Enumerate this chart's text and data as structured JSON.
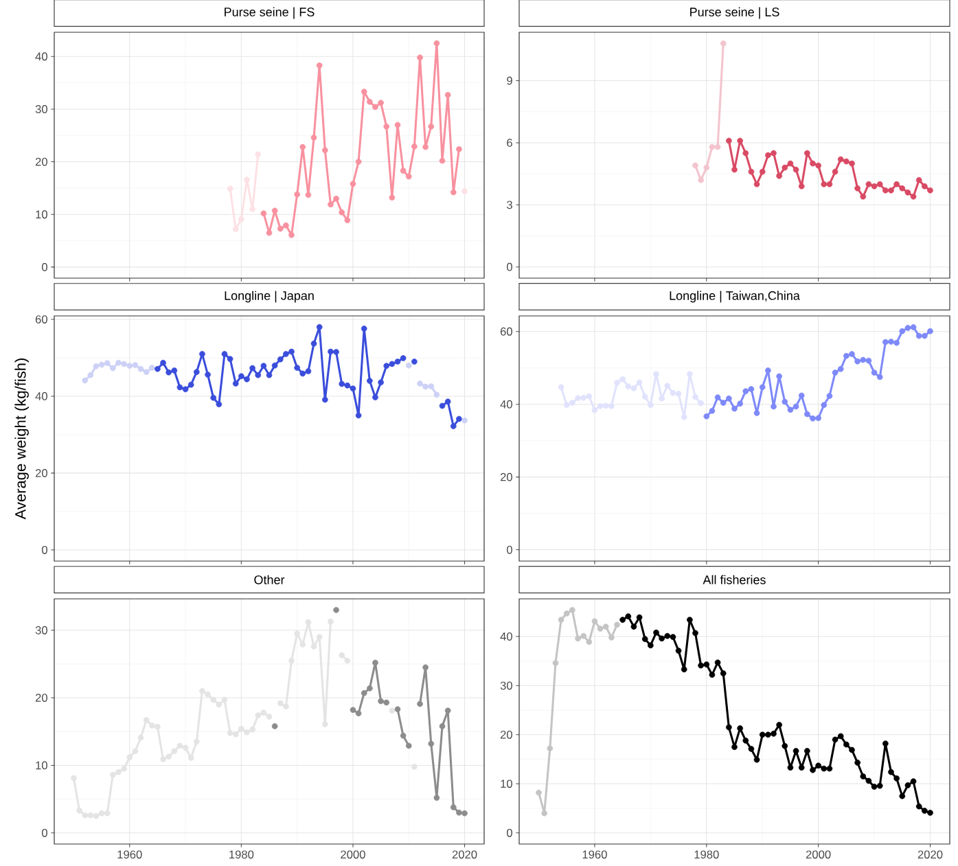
{
  "chart_data": [
    {
      "type": "line",
      "title": "Purse seine | FS",
      "xlim": [
        1946.5,
        2023.5
      ],
      "ylim": [
        -2.1,
        44.6
      ],
      "xticks": [
        1960,
        1980,
        2000,
        2020
      ],
      "yticks": [
        0,
        10,
        20,
        30,
        40
      ],
      "tick_labels": "y",
      "grid": true,
      "marker": "circle",
      "series": [
        {
          "color": "#fce1e5",
          "x": [
            1978,
            1979,
            1980,
            1981,
            1982,
            1983,
            1984,
            1985,
            1986,
            1987,
            1988,
            1989,
            1990,
            1991,
            1992,
            1993,
            1994,
            1995,
            1996,
            1997,
            1998,
            1999,
            2000,
            2001,
            2002,
            2003,
            2004,
            2005,
            2006,
            2007,
            2008,
            2009,
            2010,
            2011,
            2012,
            2013,
            2014,
            2015,
            2016,
            2017,
            2018,
            2019,
            2020
          ],
          "values": [
            14.9,
            7.2,
            9.1,
            16.6,
            11.0,
            21.4,
            null,
            null,
            null,
            null,
            null,
            null,
            null,
            null,
            null,
            null,
            null,
            null,
            null,
            null,
            null,
            null,
            null,
            null,
            null,
            null,
            null,
            null,
            null,
            null,
            null,
            null,
            null,
            null,
            null,
            null,
            null,
            null,
            null,
            null,
            null,
            null,
            14.4
          ]
        },
        {
          "color": "#f8919f",
          "x": [
            1984,
            1985,
            1986,
            1987,
            1988,
            1989,
            1990,
            1991,
            1992,
            1993,
            1994,
            1995,
            1996,
            1997,
            1998,
            1999,
            2000,
            2001,
            2002,
            2003,
            2004,
            2005,
            2006,
            2007,
            2008,
            2009,
            2010,
            2011,
            2012,
            2013,
            2014,
            2015,
            2016,
            2017,
            2018,
            2019
          ],
          "values": [
            10.2,
            6.5,
            10.7,
            7.3,
            7.9,
            6.1,
            13.8,
            22.8,
            13.7,
            24.6,
            38.3,
            22.2,
            11.9,
            13.0,
            10.4,
            8.9,
            15.8,
            20.0,
            33.3,
            31.4,
            30.4,
            31.2,
            26.7,
            13.2,
            27.0,
            18.3,
            17.2,
            22.9,
            39.8,
            22.8,
            26.7,
            42.5,
            20.2,
            32.7,
            14.2,
            22.4
          ]
        }
      ]
    },
    {
      "type": "line",
      "title": "Purse seine | LS",
      "xlim": [
        1946.5,
        2023.5
      ],
      "ylim": [
        -0.54,
        11.34
      ],
      "xticks": [
        1960,
        1980,
        2000,
        2020
      ],
      "yticks": [
        0,
        3,
        6,
        9
      ],
      "tick_labels": "y",
      "grid": true,
      "marker": "circle",
      "series": [
        {
          "color": "#f3c4ce",
          "x": [
            1978,
            1979,
            1980,
            1981,
            1982,
            1983
          ],
          "values": [
            4.9,
            4.2,
            4.8,
            5.8,
            5.8,
            10.8
          ]
        },
        {
          "color": "#d94a64",
          "x": [
            1984,
            1985,
            1986,
            1987,
            1988,
            1989,
            1990,
            1991,
            1992,
            1993,
            1994,
            1995,
            1996,
            1997,
            1998,
            1999,
            2000,
            2001,
            2002,
            2003,
            2004,
            2005,
            2006,
            2007,
            2008,
            2009,
            2010,
            2011,
            2012,
            2013,
            2014,
            2015,
            2016,
            2017,
            2018,
            2019,
            2020
          ],
          "values": [
            6.1,
            4.7,
            6.1,
            5.5,
            4.6,
            4.0,
            4.6,
            5.4,
            5.5,
            4.4,
            4.8,
            5.0,
            4.7,
            3.9,
            5.5,
            5.0,
            4.9,
            4.0,
            4.0,
            4.6,
            5.2,
            5.1,
            5.0,
            3.8,
            3.4,
            4.0,
            3.9,
            4.0,
            3.7,
            3.7,
            4.0,
            3.8,
            3.6,
            3.4,
            4.2,
            3.9,
            3.7
          ]
        }
      ]
    },
    {
      "type": "line",
      "title": "Longline | Japan",
      "ylabel": "Average weight (kg/fish)",
      "xlim": [
        1946.5,
        2023.5
      ],
      "ylim": [
        -2.9,
        60.9
      ],
      "xticks": [
        1960,
        1980,
        2000,
        2020
      ],
      "yticks": [
        0,
        20,
        40,
        60
      ],
      "tick_labels": "y",
      "grid": true,
      "marker": "circle",
      "series": [
        {
          "color": "#cdd1f6",
          "x": [
            1952,
            1953,
            1954,
            1955,
            1956,
            1957,
            1958,
            1959,
            1960,
            1961,
            1962,
            1963,
            1964,
            1965,
            1966,
            1967,
            1968,
            1969,
            1970,
            1971,
            1972,
            1973,
            1974,
            1975,
            1976,
            1977,
            1978,
            1979,
            1980,
            1981,
            1982,
            1983,
            1984,
            1985,
            1986,
            1987,
            1988,
            1989,
            1990,
            1991,
            1992,
            1993,
            1994,
            1995,
            1996,
            1997,
            1998,
            1999,
            2000,
            2001,
            2002,
            2003,
            2004,
            2005,
            2006,
            2007,
            2008,
            2009,
            2010,
            2011,
            2012,
            2013,
            2014,
            2015,
            2016,
            2017,
            2018,
            2019,
            2020
          ],
          "values": [
            44.1,
            45.5,
            47.8,
            48.2,
            48.6,
            47.3,
            48.7,
            48.4,
            47.9,
            48.1,
            47.1,
            46.3,
            47.4,
            null,
            null,
            null,
            null,
            null,
            null,
            null,
            null,
            null,
            null,
            null,
            null,
            null,
            null,
            null,
            null,
            null,
            null,
            null,
            null,
            null,
            null,
            null,
            null,
            null,
            null,
            null,
            null,
            null,
            null,
            null,
            null,
            null,
            null,
            null,
            null,
            null,
            null,
            null,
            null,
            null,
            null,
            null,
            null,
            null,
            48.0,
            null,
            43.3,
            42.5,
            42.6,
            40.4,
            null,
            null,
            null,
            null,
            33.7
          ]
        },
        {
          "color": "#3a4ddb",
          "x": [
            1965,
            1966,
            1967,
            1968,
            1969,
            1970,
            1971,
            1972,
            1973,
            1974,
            1975,
            1976,
            1977,
            1978,
            1979,
            1980,
            1981,
            1982,
            1983,
            1984,
            1985,
            1986,
            1987,
            1988,
            1989,
            1990,
            1991,
            1992,
            1993,
            1994,
            1995,
            1996,
            1997,
            1998,
            1999,
            2000,
            2001,
            2002,
            2003,
            2004,
            2005,
            2006,
            2007,
            2008,
            2009,
            2010,
            2011,
            2012,
            2013,
            2014,
            2015,
            2016,
            2017,
            2018,
            2019
          ],
          "values": [
            47.1,
            48.7,
            46.2,
            46.7,
            42.3,
            41.8,
            43.0,
            46.3,
            51.0,
            45.6,
            39.6,
            37.9,
            51.0,
            49.7,
            43.3,
            45.2,
            44.4,
            47.3,
            45.5,
            47.9,
            45.5,
            48.0,
            49.6,
            51.0,
            51.6,
            47.4,
            45.9,
            46.5,
            53.7,
            58.0,
            39.1,
            51.6,
            51.5,
            43.2,
            42.8,
            42.0,
            35.0,
            57.6,
            44.0,
            39.7,
            43.6,
            47.9,
            48.4,
            49.0,
            49.9,
            null,
            49.0,
            null,
            null,
            null,
            null,
            37.5,
            38.6,
            32.2,
            34.1
          ]
        }
      ]
    },
    {
      "type": "line",
      "title": "Longline | Taiwan,China",
      "xlim": [
        1946.5,
        2023.5
      ],
      "ylim": [
        -3.1,
        64.3
      ],
      "xticks": [
        1960,
        1980,
        2000,
        2020
      ],
      "yticks": [
        0,
        20,
        40,
        60
      ],
      "tick_labels": "y",
      "grid": true,
      "marker": "circle",
      "series": [
        {
          "color": "#e1e3fd",
          "x": [
            1954,
            1955,
            1956,
            1957,
            1958,
            1959,
            1960,
            1961,
            1962,
            1963,
            1964,
            1965,
            1966,
            1967,
            1968,
            1969,
            1970,
            1971,
            1972,
            1973,
            1974,
            1975,
            1976,
            1977,
            1978,
            1979
          ],
          "values": [
            44.7,
            39.8,
            40.4,
            41.7,
            41.8,
            42.2,
            38.4,
            39.5,
            39.6,
            39.5,
            45.9,
            46.9,
            44.9,
            44.4,
            46.0,
            42.1,
            39.8,
            48.3,
            41.6,
            45.1,
            43.1,
            42.9,
            36.5,
            48.3,
            42.0,
            40.3
          ]
        },
        {
          "color": "#7e89f9",
          "x": [
            1980,
            1981,
            1982,
            1983,
            1984,
            1985,
            1986,
            1987,
            1988,
            1989,
            1990,
            1991,
            1992,
            1993,
            1994,
            1995,
            1996,
            1997,
            1998,
            1999,
            2000,
            2001,
            2002,
            2003,
            2004,
            2005,
            2006,
            2007,
            2008,
            2009,
            2010,
            2011,
            2012,
            2013,
            2014,
            2015,
            2016,
            2017,
            2018,
            2019,
            2020
          ],
          "values": [
            36.7,
            38.2,
            41.9,
            40.4,
            41.6,
            38.8,
            40.2,
            43.6,
            44.2,
            37.6,
            44.7,
            49.3,
            39.4,
            47.7,
            40.7,
            38.5,
            39.4,
            42.4,
            37.3,
            36.1,
            36.2,
            39.8,
            42.3,
            48.7,
            49.7,
            53.3,
            53.8,
            51.8,
            52.2,
            52.0,
            48.7,
            47.5,
            57.1,
            57.2,
            56.9,
            60.1,
            61.0,
            61.2,
            58.8,
            58.8,
            60.1
          ]
        }
      ]
    },
    {
      "type": "line",
      "title": "Other",
      "xlim": [
        1946.5,
        2023.5
      ],
      "ylim": [
        -1.65,
        34.65
      ],
      "xticks": [
        1960,
        1980,
        2000,
        2020
      ],
      "yticks": [
        0,
        10,
        20,
        30
      ],
      "grid": true,
      "marker": "circle",
      "series": [
        {
          "color": "#e4e4e4",
          "x": [
            1950,
            1951,
            1952,
            1953,
            1954,
            1955,
            1956,
            1957,
            1958,
            1959,
            1960,
            1961,
            1962,
            1963,
            1964,
            1965,
            1966,
            1967,
            1968,
            1969,
            1970,
            1971,
            1972,
            1973,
            1974,
            1975,
            1976,
            1977,
            1978,
            1979,
            1980,
            1981,
            1982,
            1983,
            1984,
            1985,
            1986,
            1987,
            1988,
            1989,
            1990,
            1991,
            1992,
            1993,
            1994,
            1995,
            1996,
            1997,
            1998,
            1999,
            2000,
            2001,
            2002,
            2003,
            2004,
            2005,
            2006,
            2007,
            2008,
            2009,
            2010,
            2011
          ],
          "values": [
            8.1,
            3.3,
            2.6,
            2.6,
            2.5,
            2.9,
            2.9,
            8.6,
            9.0,
            9.5,
            11.2,
            12.1,
            14.1,
            16.7,
            15.9,
            15.7,
            10.9,
            11.3,
            12.1,
            12.9,
            12.6,
            11.1,
            13.5,
            21.0,
            20.5,
            19.7,
            19.0,
            19.7,
            14.8,
            14.6,
            15.4,
            14.9,
            15.3,
            17.4,
            17.8,
            17.2,
            null,
            19.2,
            18.7,
            25.5,
            29.5,
            27.9,
            31.2,
            27.6,
            29.0,
            16.1,
            31.3,
            null,
            26.3,
            25.5,
            null,
            null,
            null,
            null,
            null,
            null,
            null,
            18.1,
            null,
            null,
            null,
            9.8
          ]
        },
        {
          "color": "#8c8c8c",
          "x": [
            1986,
            1987,
            1988,
            1989,
            1990,
            1991,
            1992,
            1993,
            1994,
            1995,
            1996,
            1997,
            1998,
            1999,
            2000,
            2001,
            2002,
            2003,
            2004,
            2005,
            2006,
            2007,
            2008,
            2009,
            2010,
            2011,
            2012,
            2013,
            2014,
            2015,
            2016,
            2017,
            2018,
            2019,
            2020
          ],
          "values": [
            15.8,
            null,
            null,
            null,
            null,
            null,
            null,
            null,
            null,
            null,
            null,
            33.0,
            null,
            null,
            18.2,
            17.7,
            20.7,
            21.4,
            25.2,
            19.5,
            19.3,
            null,
            18.3,
            14.4,
            12.9,
            null,
            19.1,
            24.5,
            13.2,
            5.2,
            15.8,
            18.1,
            3.8,
            3.0,
            2.9
          ]
        }
      ]
    },
    {
      "type": "line",
      "title": "All fisheries",
      "xlim": [
        1946.5,
        2023.5
      ],
      "ylim": [
        -2.27,
        47.67
      ],
      "xticks": [
        1960,
        1980,
        2000,
        2020
      ],
      "yticks": [
        0,
        10,
        20,
        30,
        40
      ],
      "grid": true,
      "marker": "circle",
      "series": [
        {
          "color": "#c4c4c4",
          "x": [
            1950,
            1951,
            1952,
            1953,
            1954,
            1955,
            1956,
            1957,
            1958,
            1959,
            1960,
            1961,
            1962,
            1963,
            1964
          ],
          "values": [
            8.2,
            4.0,
            17.2,
            34.6,
            43.4,
            44.7,
            45.4,
            39.6,
            40.1,
            38.9,
            43.1,
            41.6,
            42.0,
            39.8,
            42.4
          ]
        },
        {
          "color": "#000000",
          "x": [
            1965,
            1966,
            1967,
            1968,
            1969,
            1970,
            1971,
            1972,
            1973,
            1974,
            1975,
            1976,
            1977,
            1978,
            1979,
            1980,
            1981,
            1982,
            1983,
            1984,
            1985,
            1986,
            1987,
            1988,
            1989,
            1990,
            1991,
            1992,
            1993,
            1994,
            1995,
            1996,
            1997,
            1998,
            1999,
            2000,
            2001,
            2002,
            2003,
            2004,
            2005,
            2006,
            2007,
            2008,
            2009,
            2010,
            2011,
            2012,
            2013,
            2014,
            2015,
            2016,
            2017,
            2018,
            2019,
            2020
          ],
          "values": [
            43.4,
            44.1,
            42.0,
            43.9,
            39.5,
            38.2,
            40.8,
            39.6,
            40.1,
            39.9,
            37.1,
            33.3,
            43.4,
            40.7,
            34.1,
            34.3,
            32.2,
            34.7,
            32.5,
            21.5,
            17.5,
            21.3,
            18.8,
            17.1,
            14.9,
            20.0,
            20.0,
            20.2,
            22.0,
            17.7,
            13.3,
            16.7,
            13.3,
            16.7,
            12.8,
            13.7,
            13.1,
            13.1,
            19.0,
            19.7,
            18.0,
            16.9,
            14.3,
            11.5,
            10.6,
            9.4,
            9.6,
            18.2,
            12.4,
            11.1,
            7.5,
            9.7,
            10.5,
            5.4,
            4.5,
            4.1
          ]
        }
      ]
    }
  ]
}
